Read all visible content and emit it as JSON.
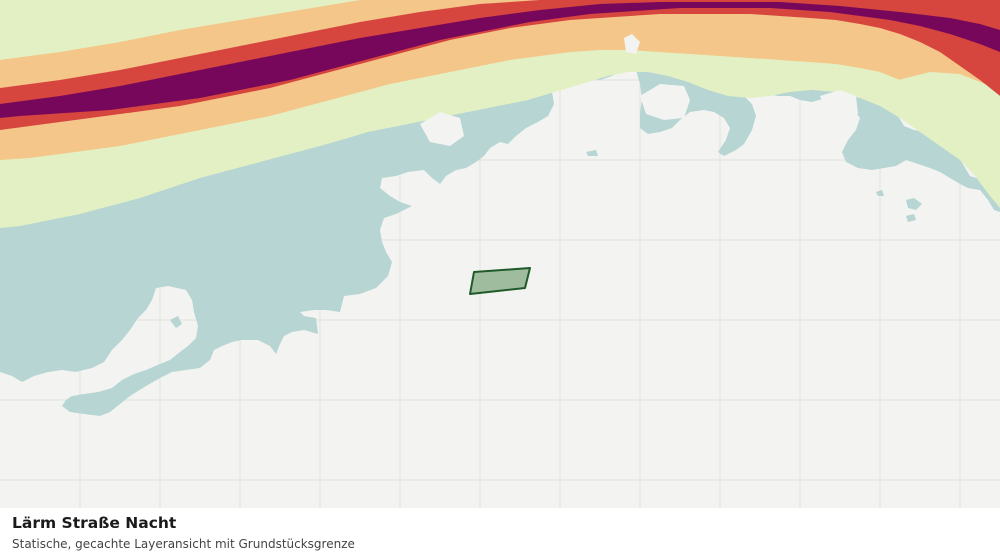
{
  "map": {
    "layer_title": "Lärm Straße Nacht",
    "subtitle": "Statische, gecachte Layeransicht mit Grundstücksgrenze",
    "colors": {
      "background": "#f3f4f1",
      "grid": "#dfe2dd",
      "water": "#b6d5d3",
      "noise_band_1": "#e2f0c3",
      "noise_band_2": "#f4c689",
      "noise_band_3": "#d6463f",
      "noise_band_4": "#76075a",
      "parcel_fill": "#9fbc9f",
      "parcel_stroke": "#1f5a2a"
    }
  }
}
